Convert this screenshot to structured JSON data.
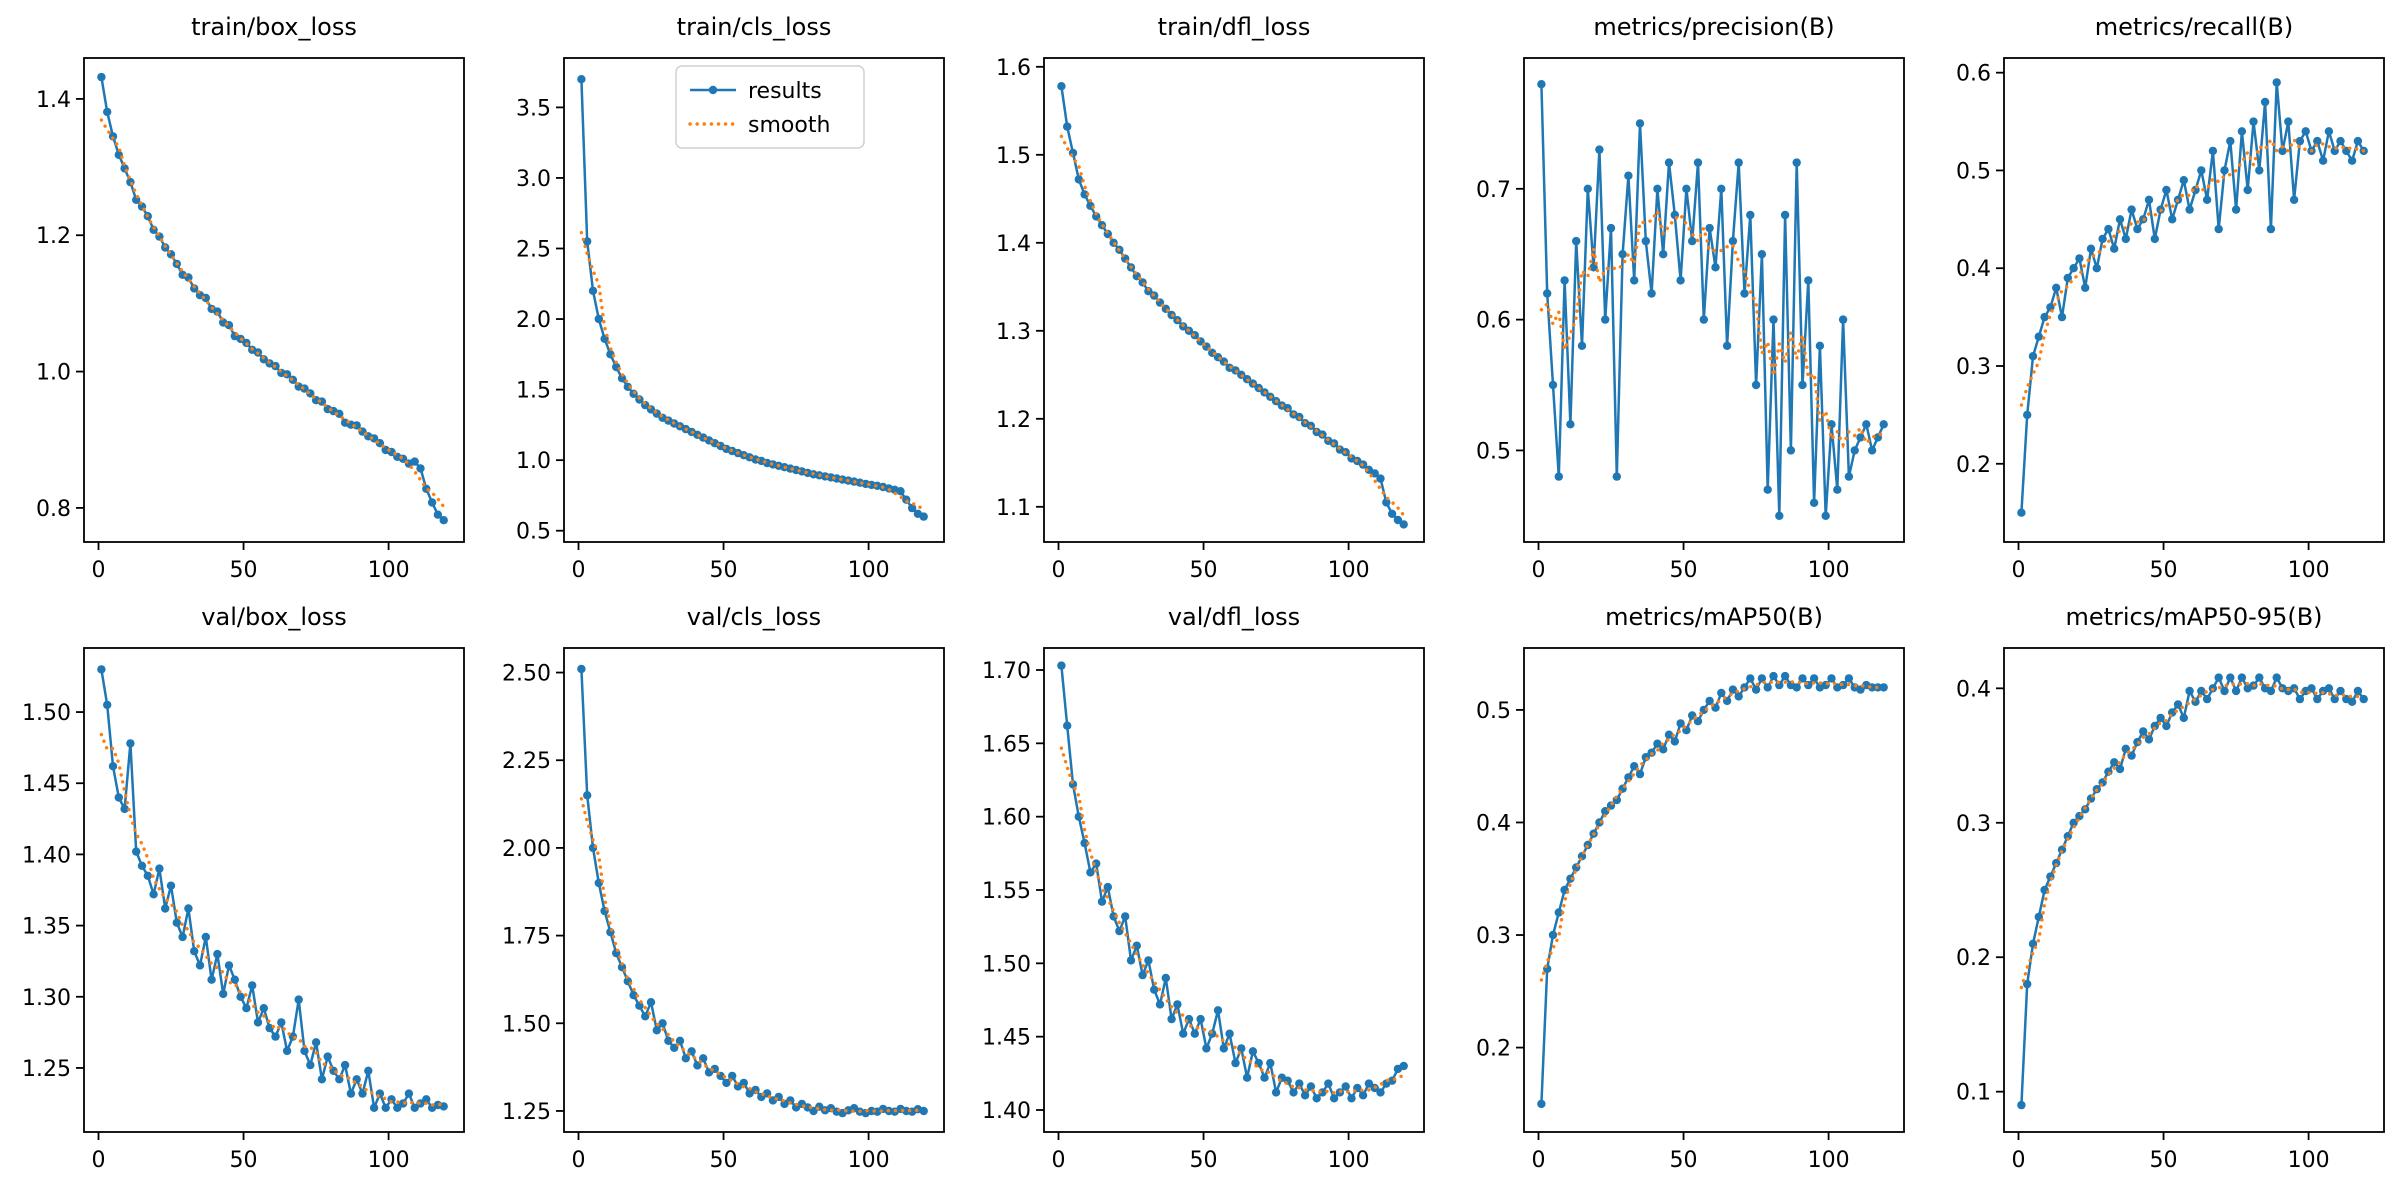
{
  "figure": {
    "background": "#ffffff"
  },
  "colors": {
    "results": "#1f77b4",
    "smooth": "#ff7f0e",
    "axis": "#000000",
    "legend_border": "#cccccc"
  },
  "legend": {
    "labels": [
      "results",
      "smooth"
    ]
  },
  "x": {
    "start": 1,
    "step": 2,
    "lim": [
      -5,
      126
    ],
    "ticks": [
      0,
      50,
      100
    ],
    "tick_labels": [
      "0",
      "50",
      "100"
    ]
  },
  "chart_data": [
    {
      "type": "line",
      "title": "train/box_loss",
      "ylim": [
        0.75,
        1.46
      ],
      "yticks": [
        0.8,
        1.0,
        1.2,
        1.4
      ],
      "ytick_labels": [
        "0.8",
        "1.0",
        "1.2",
        "1.4"
      ],
      "show_legend": false,
      "series": [
        {
          "name": "results",
          "values": [
            1.432,
            1.381,
            1.345,
            1.318,
            1.298,
            1.278,
            1.252,
            1.242,
            1.228,
            1.208,
            1.198,
            1.182,
            1.172,
            1.158,
            1.142,
            1.138,
            1.122,
            1.112,
            1.108,
            1.092,
            1.088,
            1.072,
            1.068,
            1.052,
            1.048,
            1.042,
            1.032,
            1.028,
            1.018,
            1.012,
            1.008,
            0.998,
            0.996,
            0.988,
            0.978,
            0.975,
            0.968,
            0.958,
            0.956,
            0.945,
            0.942,
            0.938,
            0.925,
            0.922,
            0.921,
            0.912,
            0.905,
            0.902,
            0.895,
            0.885,
            0.882,
            0.875,
            0.872,
            0.865,
            0.868,
            0.858,
            0.828,
            0.808,
            0.79,
            0.782
          ]
        },
        {
          "name": "smooth",
          "derived": "moving_average"
        }
      ]
    },
    {
      "type": "line",
      "title": "train/cls_loss",
      "ylim": [
        0.42,
        3.85
      ],
      "yticks": [
        0.5,
        1.0,
        1.5,
        2.0,
        2.5,
        3.0,
        3.5
      ],
      "ytick_labels": [
        "0.5",
        "1.0",
        "1.5",
        "2.0",
        "2.5",
        "3.0",
        "3.5"
      ],
      "show_legend": true,
      "series": [
        {
          "name": "results",
          "values": [
            3.7,
            2.55,
            2.2,
            2.0,
            1.86,
            1.75,
            1.66,
            1.58,
            1.52,
            1.47,
            1.43,
            1.39,
            1.36,
            1.33,
            1.3,
            1.28,
            1.26,
            1.24,
            1.22,
            1.2,
            1.18,
            1.16,
            1.14,
            1.12,
            1.1,
            1.08,
            1.065,
            1.05,
            1.035,
            1.02,
            1.005,
            0.995,
            0.98,
            0.97,
            0.96,
            0.95,
            0.94,
            0.93,
            0.92,
            0.91,
            0.9,
            0.893,
            0.885,
            0.878,
            0.87,
            0.862,
            0.855,
            0.848,
            0.84,
            0.832,
            0.825,
            0.818,
            0.81,
            0.8,
            0.79,
            0.78,
            0.72,
            0.66,
            0.62,
            0.6
          ]
        },
        {
          "name": "smooth",
          "derived": "moving_average"
        }
      ]
    },
    {
      "type": "line",
      "title": "train/dfl_loss",
      "ylim": [
        1.06,
        1.61
      ],
      "yticks": [
        1.1,
        1.2,
        1.3,
        1.4,
        1.5,
        1.6
      ],
      "ytick_labels": [
        "1.1",
        "1.2",
        "1.3",
        "1.4",
        "1.5",
        "1.6"
      ],
      "show_legend": false,
      "series": [
        {
          "name": "results",
          "values": [
            1.578,
            1.532,
            1.502,
            1.472,
            1.455,
            1.442,
            1.43,
            1.42,
            1.41,
            1.4,
            1.392,
            1.382,
            1.372,
            1.362,
            1.355,
            1.345,
            1.34,
            1.332,
            1.325,
            1.318,
            1.312,
            1.305,
            1.3,
            1.295,
            1.288,
            1.282,
            1.275,
            1.27,
            1.265,
            1.258,
            1.255,
            1.25,
            1.245,
            1.24,
            1.235,
            1.23,
            1.225,
            1.22,
            1.215,
            1.212,
            1.205,
            1.202,
            1.195,
            1.192,
            1.185,
            1.182,
            1.175,
            1.172,
            1.165,
            1.162,
            1.155,
            1.152,
            1.148,
            1.142,
            1.138,
            1.132,
            1.105,
            1.092,
            1.085,
            1.08
          ]
        },
        {
          "name": "smooth",
          "derived": "moving_average"
        }
      ]
    },
    {
      "type": "line",
      "title": "metrics/precision(B)",
      "ylim": [
        0.43,
        0.8
      ],
      "yticks": [
        0.5,
        0.6,
        0.7
      ],
      "ytick_labels": [
        "0.5",
        "0.6",
        "0.7"
      ],
      "show_legend": false,
      "series": [
        {
          "name": "results",
          "values": [
            0.78,
            0.62,
            0.55,
            0.48,
            0.63,
            0.52,
            0.66,
            0.58,
            0.7,
            0.64,
            0.73,
            0.6,
            0.67,
            0.48,
            0.65,
            0.71,
            0.63,
            0.75,
            0.66,
            0.62,
            0.7,
            0.65,
            0.72,
            0.68,
            0.63,
            0.7,
            0.66,
            0.72,
            0.6,
            0.67,
            0.64,
            0.7,
            0.58,
            0.66,
            0.72,
            0.62,
            0.68,
            0.55,
            0.65,
            0.47,
            0.6,
            0.45,
            0.68,
            0.5,
            0.72,
            0.55,
            0.63,
            0.46,
            0.58,
            0.45,
            0.52,
            0.47,
            0.6,
            0.48,
            0.5,
            0.51,
            0.52,
            0.5,
            0.51,
            0.52
          ]
        },
        {
          "name": "smooth",
          "derived": "moving_average"
        }
      ]
    },
    {
      "type": "line",
      "title": "metrics/recall(B)",
      "ylim": [
        0.12,
        0.615
      ],
      "yticks": [
        0.2,
        0.3,
        0.4,
        0.5,
        0.6
      ],
      "ytick_labels": [
        "0.2",
        "0.3",
        "0.4",
        "0.5",
        "0.6"
      ],
      "show_legend": false,
      "series": [
        {
          "name": "results",
          "values": [
            0.15,
            0.25,
            0.31,
            0.33,
            0.35,
            0.36,
            0.38,
            0.35,
            0.39,
            0.4,
            0.41,
            0.38,
            0.42,
            0.4,
            0.43,
            0.44,
            0.42,
            0.45,
            0.43,
            0.46,
            0.44,
            0.45,
            0.47,
            0.43,
            0.46,
            0.48,
            0.45,
            0.47,
            0.49,
            0.46,
            0.48,
            0.5,
            0.47,
            0.52,
            0.44,
            0.5,
            0.53,
            0.46,
            0.54,
            0.48,
            0.55,
            0.5,
            0.57,
            0.44,
            0.59,
            0.52,
            0.55,
            0.47,
            0.53,
            0.54,
            0.52,
            0.53,
            0.51,
            0.54,
            0.52,
            0.53,
            0.52,
            0.51,
            0.53,
            0.52
          ]
        },
        {
          "name": "smooth",
          "derived": "moving_average"
        }
      ]
    },
    {
      "type": "line",
      "title": "val/box_loss",
      "ylim": [
        1.205,
        1.545
      ],
      "yticks": [
        1.25,
        1.3,
        1.35,
        1.4,
        1.45,
        1.5
      ],
      "ytick_labels": [
        "1.25",
        "1.30",
        "1.35",
        "1.40",
        "1.45",
        "1.50"
      ],
      "show_legend": false,
      "series": [
        {
          "name": "results",
          "values": [
            1.53,
            1.505,
            1.462,
            1.44,
            1.432,
            1.478,
            1.402,
            1.392,
            1.385,
            1.372,
            1.39,
            1.362,
            1.378,
            1.352,
            1.342,
            1.362,
            1.332,
            1.322,
            1.342,
            1.312,
            1.33,
            1.302,
            1.322,
            1.312,
            1.3,
            1.292,
            1.308,
            1.282,
            1.292,
            1.278,
            1.272,
            1.282,
            1.262,
            1.272,
            1.298,
            1.262,
            1.252,
            1.268,
            1.242,
            1.258,
            1.248,
            1.242,
            1.252,
            1.232,
            1.242,
            1.232,
            1.248,
            1.222,
            1.232,
            1.222,
            1.228,
            1.222,
            1.225,
            1.232,
            1.222,
            1.225,
            1.228,
            1.222,
            1.224,
            1.223
          ]
        },
        {
          "name": "smooth",
          "derived": "moving_average"
        }
      ]
    },
    {
      "type": "line",
      "title": "val/cls_loss",
      "ylim": [
        1.19,
        2.57
      ],
      "yticks": [
        1.25,
        1.5,
        1.75,
        2.0,
        2.25,
        2.5
      ],
      "ytick_labels": [
        "1.25",
        "1.50",
        "1.75",
        "2.00",
        "2.25",
        "2.50"
      ],
      "show_legend": false,
      "series": [
        {
          "name": "results",
          "values": [
            2.51,
            2.15,
            2.0,
            1.9,
            1.82,
            1.76,
            1.7,
            1.66,
            1.62,
            1.58,
            1.55,
            1.52,
            1.56,
            1.48,
            1.5,
            1.45,
            1.43,
            1.45,
            1.4,
            1.42,
            1.38,
            1.4,
            1.36,
            1.37,
            1.35,
            1.33,
            1.35,
            1.32,
            1.33,
            1.3,
            1.31,
            1.29,
            1.3,
            1.28,
            1.29,
            1.27,
            1.28,
            1.26,
            1.27,
            1.26,
            1.25,
            1.262,
            1.252,
            1.258,
            1.248,
            1.244,
            1.252,
            1.258,
            1.248,
            1.244,
            1.25,
            1.248,
            1.256,
            1.25,
            1.248,
            1.256,
            1.25,
            1.248,
            1.255,
            1.25
          ]
        },
        {
          "name": "smooth",
          "derived": "moving_average"
        }
      ]
    },
    {
      "type": "line",
      "title": "val/dfl_loss",
      "ylim": [
        1.385,
        1.715
      ],
      "yticks": [
        1.4,
        1.45,
        1.5,
        1.55,
        1.6,
        1.65,
        1.7
      ],
      "ytick_labels": [
        "1.40",
        "1.45",
        "1.50",
        "1.55",
        "1.60",
        "1.65",
        "1.70"
      ],
      "show_legend": false,
      "series": [
        {
          "name": "results",
          "values": [
            1.703,
            1.662,
            1.622,
            1.6,
            1.582,
            1.562,
            1.568,
            1.542,
            1.552,
            1.532,
            1.522,
            1.532,
            1.502,
            1.512,
            1.492,
            1.502,
            1.482,
            1.472,
            1.49,
            1.462,
            1.472,
            1.452,
            1.462,
            1.452,
            1.462,
            1.442,
            1.452,
            1.468,
            1.442,
            1.452,
            1.432,
            1.442,
            1.422,
            1.44,
            1.432,
            1.422,
            1.432,
            1.412,
            1.422,
            1.42,
            1.412,
            1.418,
            1.41,
            1.416,
            1.408,
            1.412,
            1.418,
            1.408,
            1.412,
            1.416,
            1.408,
            1.415,
            1.41,
            1.418,
            1.415,
            1.412,
            1.418,
            1.42,
            1.428,
            1.43
          ]
        },
        {
          "name": "smooth",
          "derived": "moving_average"
        }
      ]
    },
    {
      "type": "line",
      "title": "metrics/mAP50(B)",
      "ylim": [
        0.125,
        0.555
      ],
      "yticks": [
        0.2,
        0.3,
        0.4,
        0.5
      ],
      "ytick_labels": [
        "0.2",
        "0.3",
        "0.4",
        "0.5"
      ],
      "show_legend": false,
      "series": [
        {
          "name": "results",
          "values": [
            0.15,
            0.27,
            0.3,
            0.32,
            0.34,
            0.35,
            0.36,
            0.37,
            0.38,
            0.39,
            0.4,
            0.41,
            0.415,
            0.42,
            0.43,
            0.44,
            0.45,
            0.443,
            0.458,
            0.462,
            0.47,
            0.465,
            0.478,
            0.472,
            0.488,
            0.482,
            0.495,
            0.49,
            0.5,
            0.508,
            0.502,
            0.515,
            0.508,
            0.518,
            0.512,
            0.52,
            0.528,
            0.518,
            0.528,
            0.52,
            0.53,
            0.522,
            0.53,
            0.522,
            0.52,
            0.528,
            0.522,
            0.528,
            0.52,
            0.522,
            0.528,
            0.52,
            0.522,
            0.528,
            0.52,
            0.518,
            0.522,
            0.52,
            0.52,
            0.52
          ]
        },
        {
          "name": "smooth",
          "derived": "moving_average"
        }
      ]
    },
    {
      "type": "line",
      "title": "metrics/mAP50-95(B)",
      "ylim": [
        0.07,
        0.43
      ],
      "yticks": [
        0.1,
        0.2,
        0.3,
        0.4
      ],
      "ytick_labels": [
        "0.1",
        "0.2",
        "0.3",
        "0.4"
      ],
      "show_legend": false,
      "series": [
        {
          "name": "results",
          "values": [
            0.09,
            0.18,
            0.21,
            0.23,
            0.25,
            0.26,
            0.27,
            0.28,
            0.29,
            0.3,
            0.305,
            0.31,
            0.318,
            0.325,
            0.33,
            0.338,
            0.345,
            0.34,
            0.355,
            0.35,
            0.36,
            0.368,
            0.362,
            0.372,
            0.378,
            0.372,
            0.382,
            0.388,
            0.378,
            0.398,
            0.39,
            0.398,
            0.392,
            0.4,
            0.408,
            0.398,
            0.408,
            0.398,
            0.408,
            0.4,
            0.402,
            0.408,
            0.4,
            0.398,
            0.408,
            0.4,
            0.398,
            0.4,
            0.392,
            0.398,
            0.4,
            0.392,
            0.398,
            0.4,
            0.392,
            0.398,
            0.392,
            0.39,
            0.398,
            0.392
          ]
        },
        {
          "name": "smooth",
          "derived": "moving_average"
        }
      ]
    }
  ]
}
